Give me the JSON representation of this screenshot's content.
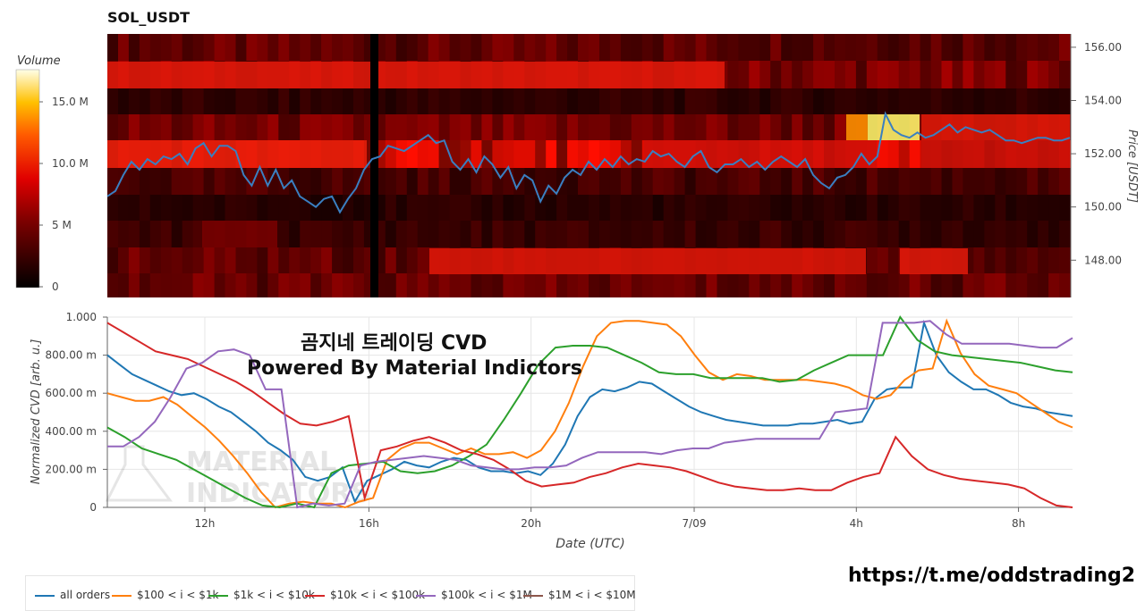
{
  "title": "SOL_USDT",
  "overlay": {
    "line1": "곰지네 트레이딩 CVD",
    "line2": "Powered By Material Indictors",
    "logo_text_1": "MATERIAL",
    "logo_text_2": "INDICATORS"
  },
  "footer_link": "https://t.me/oddstrading2",
  "colors": {
    "all": "#1f77b4",
    "c100": "#ff7f0e",
    "c1k": "#2ca02c",
    "c10k": "#d62728",
    "c100k": "#9467bd",
    "c1m": "#8c564b",
    "price": "#3a7fc1"
  },
  "chart_data": [
    {
      "type": "heatmap",
      "title": "SOL_USDT",
      "colorbar": {
        "label": "Volume",
        "ticks": [
          "0",
          "5 M",
          "10.0 M",
          "15.0 M"
        ],
        "range": [
          0,
          17500000
        ]
      },
      "y_right_label": "Price [USDT]",
      "y_right_ticks": [
        "148.00",
        "150.00",
        "152.00",
        "154.00",
        "156.00"
      ],
      "y_range": [
        146.6,
        156.5
      ],
      "price_series": {
        "t": [
          0,
          1,
          2,
          3,
          4,
          5,
          6,
          7,
          8,
          9,
          10,
          11,
          12,
          13,
          14,
          15,
          16,
          17,
          18,
          19,
          20,
          21,
          22,
          23,
          24,
          25,
          26,
          27,
          28,
          29,
          30,
          31,
          32,
          33,
          34,
          35,
          36,
          37,
          38,
          39,
          40,
          41,
          42,
          43,
          44,
          45,
          46,
          47,
          48,
          49,
          50,
          51,
          52,
          53,
          54,
          55,
          56,
          57,
          58,
          59,
          60,
          61,
          62,
          63,
          64,
          65,
          66,
          67,
          68,
          69,
          70,
          71,
          72,
          73,
          74,
          75,
          76,
          77,
          78,
          79,
          80,
          81,
          82,
          83,
          84,
          85,
          86,
          87,
          88,
          89,
          90,
          91,
          92,
          93,
          94,
          95,
          96,
          97,
          98,
          99,
          100,
          101,
          102,
          103,
          104,
          105,
          106,
          107,
          108,
          109,
          110,
          111,
          112,
          113,
          114,
          115,
          116,
          117,
          118,
          119,
          120
        ],
        "price": [
          150.4,
          150.6,
          151.2,
          151.7,
          151.4,
          151.8,
          151.6,
          151.9,
          151.8,
          152.0,
          151.6,
          152.2,
          152.4,
          151.9,
          152.3,
          152.3,
          152.1,
          151.2,
          150.8,
          151.5,
          150.8,
          151.4,
          150.7,
          151.0,
          150.4,
          150.2,
          150.0,
          150.3,
          150.4,
          149.8,
          150.3,
          150.7,
          151.4,
          151.8,
          151.9,
          152.3,
          152.2,
          152.1,
          152.3,
          152.5,
          152.7,
          152.4,
          152.5,
          151.7,
          151.4,
          151.8,
          151.3,
          151.9,
          151.6,
          151.1,
          151.5,
          150.7,
          151.2,
          151.0,
          150.2,
          150.8,
          150.5,
          151.1,
          151.4,
          151.2,
          151.7,
          151.4,
          151.8,
          151.5,
          151.9,
          151.6,
          151.8,
          151.7,
          152.1,
          151.9,
          152.0,
          151.7,
          151.5,
          151.9,
          152.1,
          151.5,
          151.3,
          151.6,
          151.6,
          151.8,
          151.5,
          151.7,
          151.4,
          151.7,
          151.9,
          151.7,
          151.5,
          151.8,
          151.2,
          150.9,
          150.7,
          151.1,
          151.2,
          151.5,
          152.0,
          151.6,
          151.9,
          153.5,
          152.9,
          152.7,
          152.6,
          152.8,
          152.6,
          152.7,
          152.9,
          153.1,
          152.8,
          153.0,
          152.9,
          152.8,
          152.9,
          152.7,
          152.5,
          152.5,
          152.4,
          152.5,
          152.6,
          152.6,
          152.5,
          152.5,
          152.6
        ]
      }
    },
    {
      "type": "line",
      "title": "",
      "xlabel": "Date (UTC)",
      "ylabel": "Normalized CVD [arb. u.]",
      "ylim": [
        0,
        1.0
      ],
      "y_ticks": [
        "0",
        "200.00 m",
        "400.00 m",
        "600.00 m",
        "800.00 m",
        "1.000"
      ],
      "x_ticks": [
        "12h",
        "16h",
        "20h",
        "7/09",
        "4h",
        "8h"
      ],
      "x_tick_pos": [
        0.101,
        0.271,
        0.439,
        0.608,
        0.776,
        0.944
      ],
      "series": [
        {
          "name": "all orders",
          "color": "#1f77b4",
          "values": [
            0.8,
            0.75,
            0.7,
            0.67,
            0.64,
            0.61,
            0.59,
            0.6,
            0.57,
            0.53,
            0.5,
            0.45,
            0.4,
            0.34,
            0.3,
            0.25,
            0.16,
            0.14,
            0.16,
            0.21,
            0.03,
            0.14,
            0.17,
            0.2,
            0.24,
            0.22,
            0.21,
            0.24,
            0.26,
            0.25,
            0.21,
            0.19,
            0.19,
            0.18,
            0.19,
            0.17,
            0.23,
            0.33,
            0.48,
            0.58,
            0.62,
            0.61,
            0.63,
            0.66,
            0.65,
            0.61,
            0.57,
            0.53,
            0.5,
            0.48,
            0.46,
            0.45,
            0.44,
            0.43,
            0.43,
            0.43,
            0.44,
            0.44,
            0.45,
            0.46,
            0.44,
            0.45,
            0.57,
            0.62,
            0.63,
            0.63,
            0.97,
            0.8,
            0.71,
            0.66,
            0.62,
            0.62,
            0.59,
            0.55,
            0.53,
            0.52,
            0.5,
            0.49,
            0.48
          ]
        },
        {
          "name": "$100 < i < $1k",
          "color": "#ff7f0e",
          "values": [
            0.6,
            0.58,
            0.56,
            0.56,
            0.58,
            0.54,
            0.48,
            0.42,
            0.35,
            0.27,
            0.18,
            0.08,
            0.0,
            0.02,
            0.03,
            0.02,
            0.02,
            0.0,
            0.03,
            0.05,
            0.25,
            0.31,
            0.34,
            0.34,
            0.31,
            0.28,
            0.31,
            0.28,
            0.28,
            0.29,
            0.26,
            0.3,
            0.4,
            0.55,
            0.74,
            0.9,
            0.97,
            0.98,
            0.98,
            0.97,
            0.96,
            0.9,
            0.8,
            0.71,
            0.67,
            0.7,
            0.69,
            0.67,
            0.67,
            0.67,
            0.67,
            0.66,
            0.65,
            0.63,
            0.59,
            0.57,
            0.59,
            0.67,
            0.72,
            0.73,
            0.98,
            0.81,
            0.7,
            0.64,
            0.62,
            0.6,
            0.55,
            0.5,
            0.45,
            0.42
          ]
        },
        {
          "name": "$1k < i < $10k",
          "color": "#2ca02c",
          "values": [
            0.42,
            0.37,
            0.31,
            0.28,
            0.25,
            0.2,
            0.15,
            0.1,
            0.05,
            0.01,
            0.0,
            0.02,
            0.0,
            0.18,
            0.22,
            0.23,
            0.24,
            0.19,
            0.18,
            0.19,
            0.22,
            0.27,
            0.33,
            0.46,
            0.6,
            0.75,
            0.84,
            0.85,
            0.85,
            0.84,
            0.8,
            0.76,
            0.71,
            0.7,
            0.7,
            0.68,
            0.68,
            0.68,
            0.68,
            0.66,
            0.67,
            0.72,
            0.76,
            0.8,
            0.8,
            0.8,
            1.0,
            0.88,
            0.82,
            0.8,
            0.79,
            0.78,
            0.77,
            0.76,
            0.74,
            0.72,
            0.71
          ]
        },
        {
          "name": "$10k < i < $100k",
          "color": "#d62728",
          "values": [
            0.97,
            0.92,
            0.87,
            0.82,
            0.8,
            0.78,
            0.74,
            0.7,
            0.66,
            0.61,
            0.55,
            0.49,
            0.44,
            0.43,
            0.45,
            0.48,
            0.05,
            0.3,
            0.32,
            0.35,
            0.37,
            0.34,
            0.3,
            0.28,
            0.25,
            0.2,
            0.14,
            0.11,
            0.12,
            0.13,
            0.16,
            0.18,
            0.21,
            0.23,
            0.22,
            0.21,
            0.19,
            0.16,
            0.13,
            0.11,
            0.1,
            0.09,
            0.09,
            0.1,
            0.09,
            0.09,
            0.13,
            0.16,
            0.18,
            0.37,
            0.27,
            0.2,
            0.17,
            0.15,
            0.14,
            0.13,
            0.12,
            0.1,
            0.05,
            0.01,
            0.0
          ]
        },
        {
          "name": "$100k < i < $1M",
          "color": "#9467bd",
          "values": [
            0.32,
            0.32,
            0.37,
            0.45,
            0.58,
            0.73,
            0.76,
            0.82,
            0.83,
            0.8,
            0.62,
            0.62,
            0.0,
            0.02,
            0.01,
            0.02,
            0.22,
            0.24,
            0.25,
            0.26,
            0.27,
            0.26,
            0.25,
            0.22,
            0.21,
            0.2,
            0.2,
            0.21,
            0.21,
            0.22,
            0.26,
            0.29,
            0.29,
            0.29,
            0.29,
            0.28,
            0.3,
            0.31,
            0.31,
            0.34,
            0.35,
            0.36,
            0.36,
            0.36,
            0.36,
            0.36,
            0.5,
            0.51,
            0.52,
            0.97,
            0.97,
            0.97,
            0.98,
            0.91,
            0.86,
            0.86,
            0.86,
            0.86,
            0.85,
            0.84,
            0.84,
            0.89
          ]
        },
        {
          "name": "$1M < i < $10M",
          "color": "#8c564b",
          "values": []
        }
      ]
    }
  ]
}
